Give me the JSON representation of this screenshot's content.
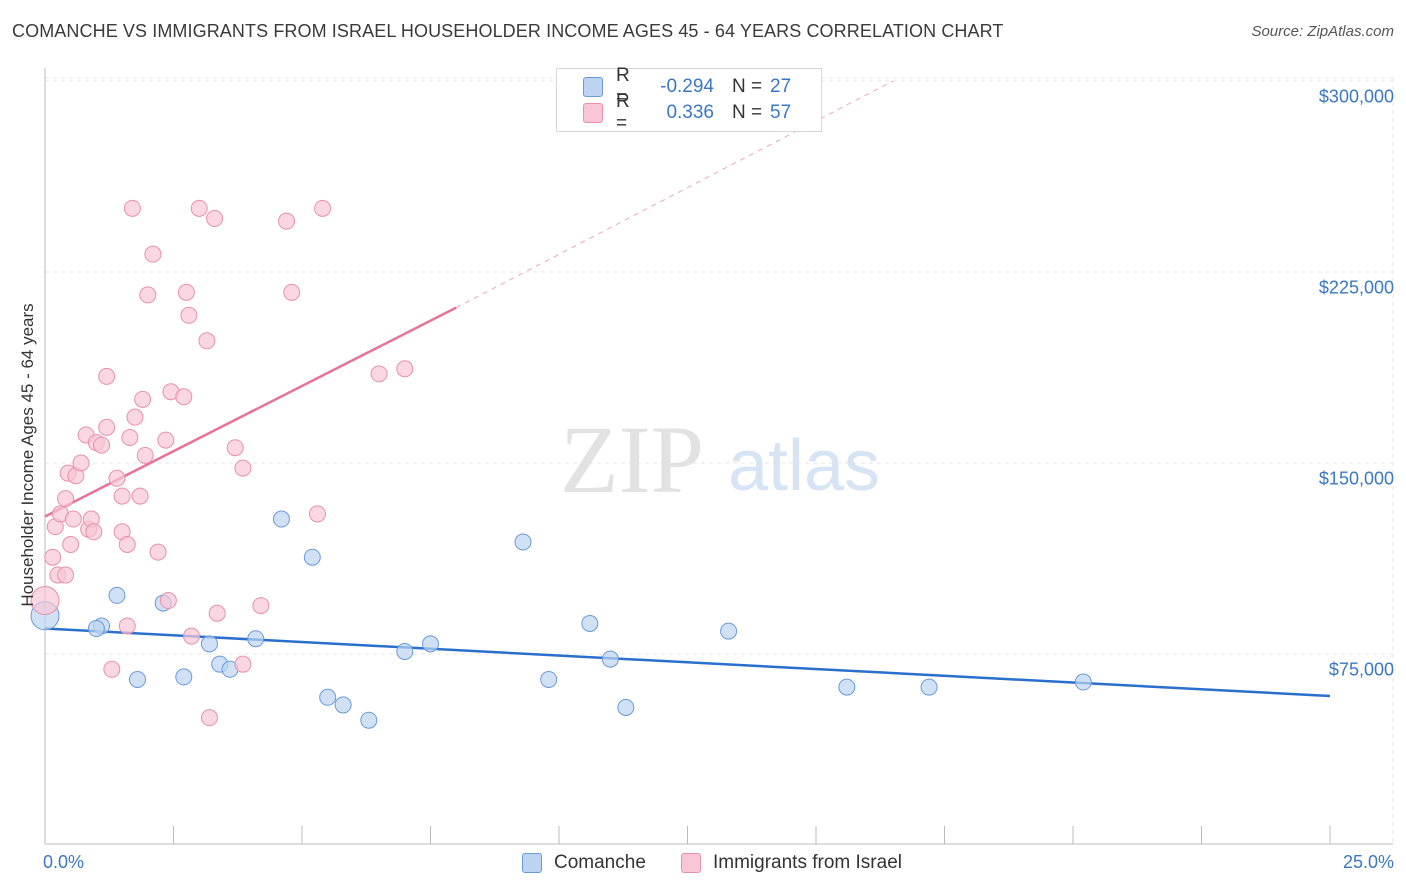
{
  "title": "COMANCHE VS IMMIGRANTS FROM ISRAEL HOUSEHOLDER INCOME AGES 45 - 64 YEARS CORRELATION CHART",
  "source": "Source: ZipAtlas.com",
  "watermark": {
    "zip": "ZIP",
    "atlas": "atlas"
  },
  "legend_top": {
    "rows": [
      {
        "r_label": "R =",
        "r_value": "-0.294",
        "n_label": "N =",
        "n_value": "27"
      },
      {
        "r_label": "R =",
        "r_value": "0.336",
        "n_label": "N =",
        "n_value": "57"
      }
    ]
  },
  "legend_bottom": [
    "Comanche",
    "Immigrants from Israel"
  ],
  "colors": {
    "blue_fill": "#bcd4f2",
    "blue_stroke": "#6a9ad8",
    "blue_line": "#2a6fcc",
    "pink_fill": "#f8c6d6",
    "pink_stroke": "#e890ac",
    "pink_line": "#e8739a",
    "tick_text": "#3b78c4",
    "grid": "#e4e4e4"
  },
  "chart_data": {
    "type": "scatter",
    "title": "COMANCHE VS IMMIGRANTS FROM ISRAEL HOUSEHOLDER INCOME AGES 45 - 64 YEARS CORRELATION CHART",
    "xlabel": "",
    "ylabel": "Householder Income Ages 45 - 64 years",
    "xlim": [
      0,
      25
    ],
    "ylim": [
      0,
      315000
    ],
    "x_tick_labels": [
      "0.0%",
      "25.0%"
    ],
    "y_ticks": [
      75000,
      150000,
      225000,
      300000
    ],
    "y_tick_labels": [
      "$75,000",
      "$150,000",
      "$225,000",
      "$300,000"
    ],
    "grid": true,
    "legend_position": "bottom",
    "series": [
      {
        "name": "Comanche",
        "points": [
          [
            0.0,
            90000,
            "big"
          ],
          [
            1.1,
            86000
          ],
          [
            1.0,
            85000
          ],
          [
            1.4,
            98000
          ],
          [
            1.8,
            65000
          ],
          [
            2.3,
            95000
          ],
          [
            2.7,
            66000
          ],
          [
            3.2,
            79000
          ],
          [
            3.4,
            71000
          ],
          [
            3.6,
            69000
          ],
          [
            4.1,
            81000
          ],
          [
            4.6,
            128000
          ],
          [
            5.2,
            113000
          ],
          [
            5.5,
            58000
          ],
          [
            5.8,
            55000
          ],
          [
            6.3,
            49000
          ],
          [
            7.0,
            76000
          ],
          [
            7.5,
            79000
          ],
          [
            9.3,
            119000
          ],
          [
            9.8,
            65000
          ],
          [
            10.6,
            87000
          ],
          [
            11.0,
            73000
          ],
          [
            11.3,
            54000
          ],
          [
            13.3,
            84000
          ],
          [
            15.6,
            62000
          ],
          [
            17.2,
            62000
          ],
          [
            20.2,
            64000
          ]
        ],
        "trend": {
          "x": [
            0,
            25
          ],
          "y": [
            85000,
            58500
          ]
        }
      },
      {
        "name": "Immigrants from Israel",
        "points": [
          [
            0.0,
            96000,
            "big"
          ],
          [
            0.15,
            113000
          ],
          [
            0.2,
            125000
          ],
          [
            0.3,
            130000
          ],
          [
            0.25,
            106000
          ],
          [
            0.4,
            106000
          ],
          [
            0.4,
            136000
          ],
          [
            0.45,
            146000
          ],
          [
            0.5,
            118000
          ],
          [
            0.55,
            128000
          ],
          [
            0.6,
            145000
          ],
          [
            0.7,
            150000
          ],
          [
            0.8,
            161000
          ],
          [
            0.85,
            124000
          ],
          [
            0.9,
            128000
          ],
          [
            0.95,
            123000
          ],
          [
            1.0,
            158000
          ],
          [
            1.1,
            157000
          ],
          [
            1.2,
            164000
          ],
          [
            1.2,
            184000
          ],
          [
            1.3,
            69000
          ],
          [
            1.4,
            144000
          ],
          [
            1.5,
            123000
          ],
          [
            1.5,
            137000
          ],
          [
            1.6,
            118000
          ],
          [
            1.6,
            86000
          ],
          [
            1.65,
            160000
          ],
          [
            1.7,
            250000
          ],
          [
            1.75,
            168000
          ],
          [
            1.85,
            137000
          ],
          [
            1.9,
            175000
          ],
          [
            1.95,
            153000
          ],
          [
            2.0,
            216000
          ],
          [
            2.1,
            232000
          ],
          [
            2.2,
            115000
          ],
          [
            2.35,
            159000
          ],
          [
            2.4,
            96000
          ],
          [
            2.45,
            178000
          ],
          [
            2.7,
            176000
          ],
          [
            2.75,
            217000
          ],
          [
            2.8,
            208000
          ],
          [
            2.85,
            82000
          ],
          [
            3.0,
            250000
          ],
          [
            3.15,
            198000
          ],
          [
            3.2,
            50000
          ],
          [
            3.3,
            246000
          ],
          [
            3.35,
            91000
          ],
          [
            3.7,
            156000
          ],
          [
            3.85,
            148000
          ],
          [
            3.85,
            71000
          ],
          [
            4.2,
            94000
          ],
          [
            4.7,
            245000
          ],
          [
            4.8,
            217000
          ],
          [
            5.3,
            130000
          ],
          [
            5.4,
            250000
          ],
          [
            6.5,
            185000
          ],
          [
            7.0,
            187000
          ]
        ],
        "trend": {
          "x": [
            0,
            8.0
          ],
          "y": [
            129000,
            211000
          ]
        },
        "trend_extension": {
          "x": [
            8.0,
            16.5
          ],
          "y": [
            211000,
            300000
          ]
        }
      }
    ]
  }
}
